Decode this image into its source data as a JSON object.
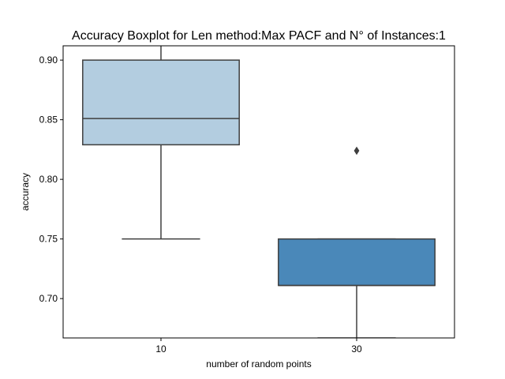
{
  "chart_data": {
    "type": "boxplot",
    "title": "Accuracy Boxplot for Len method:Max PACF and N° of Instances:1",
    "xlabel": "number of random points",
    "ylabel": "accuracy",
    "ylim": [
      0.667,
      0.912
    ],
    "y_ticks": [
      0.7,
      0.75,
      0.8,
      0.85,
      0.9
    ],
    "y_tick_labels": [
      "0.70",
      "0.75",
      "0.80",
      "0.85",
      "0.90"
    ],
    "grid": false,
    "legend": "none",
    "categories": [
      "10",
      "30"
    ],
    "boxes": [
      {
        "category": "10",
        "whisker_low": 0.75,
        "q1": 0.829,
        "median": 0.851,
        "q3": 0.9,
        "whisker_high": 0.92,
        "outliers": [],
        "color": "#b3cde0"
      },
      {
        "category": "30",
        "whisker_low": 0.667,
        "q1": 0.711,
        "median": 0.711,
        "q3": 0.75,
        "whisker_high": 0.75,
        "outliers": [
          0.824
        ],
        "color": "#4a88b9"
      }
    ],
    "line_color": "#3f3f3f"
  }
}
